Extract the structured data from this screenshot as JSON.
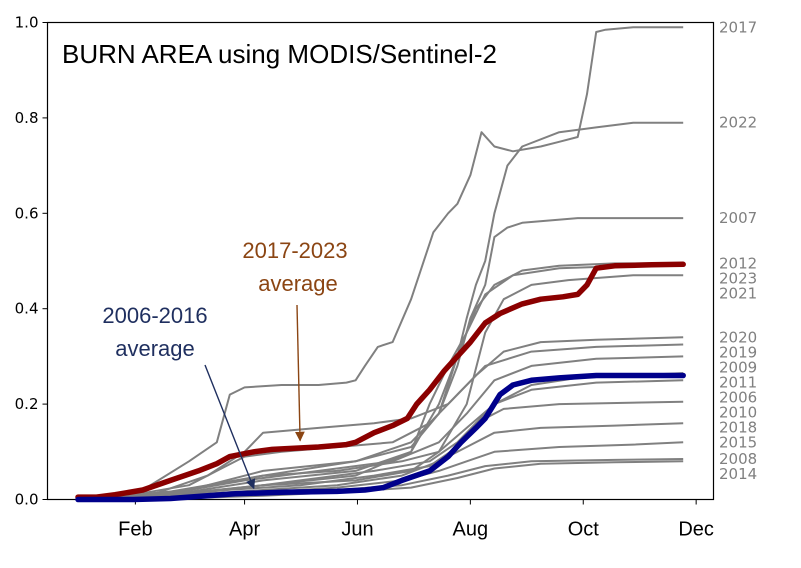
{
  "chart_data": {
    "type": "line",
    "title": "BURN AREA using MODIS/Sentinel-2",
    "xlabel": "",
    "ylabel": "",
    "xlim": [
      0,
      335
    ],
    "ylim": [
      0,
      1.0
    ],
    "yticks": [
      "0.0",
      "0.2",
      "0.4",
      "0.6",
      "0.8",
      "1.0"
    ],
    "xticks": [
      {
        "label": "Feb",
        "x": 31
      },
      {
        "label": "Apr",
        "x": 90
      },
      {
        "label": "Jun",
        "x": 151
      },
      {
        "label": "Aug",
        "x": 212
      },
      {
        "label": "Oct",
        "x": 273
      },
      {
        "label": "Dec",
        "x": 334
      }
    ],
    "grid": false,
    "legend": "none",
    "colors": {
      "years": "#808080",
      "recent_average": "#8b0000",
      "past_average": "#00008b",
      "recent_annotation": "#8b4513",
      "past_annotation": "#1f2f5f"
    },
    "series": [
      {
        "name": "2017",
        "end_value": 0.99,
        "points": [
          [
            0,
            0
          ],
          [
            20,
            0
          ],
          [
            35,
            0.02
          ],
          [
            60,
            0.08
          ],
          [
            75,
            0.12
          ],
          [
            82,
            0.22
          ],
          [
            90,
            0.235
          ],
          [
            110,
            0.24
          ],
          [
            130,
            0.24
          ],
          [
            145,
            0.245
          ],
          [
            150,
            0.25
          ],
          [
            155,
            0.28
          ],
          [
            162,
            0.32
          ],
          [
            170,
            0.33
          ],
          [
            180,
            0.42
          ],
          [
            192,
            0.56
          ],
          [
            200,
            0.6
          ],
          [
            205,
            0.62
          ],
          [
            212,
            0.68
          ],
          [
            218,
            0.77
          ],
          [
            225,
            0.74
          ],
          [
            235,
            0.73
          ],
          [
            250,
            0.74
          ],
          [
            260,
            0.75
          ],
          [
            270,
            0.76
          ],
          [
            275,
            0.85
          ],
          [
            280,
            0.98
          ],
          [
            285,
            0.985
          ],
          [
            300,
            0.99
          ],
          [
            327,
            0.99
          ]
        ]
      },
      {
        "name": "2022",
        "end_value": 0.79,
        "points": [
          [
            0,
            0
          ],
          [
            30,
            0
          ],
          [
            60,
            0.02
          ],
          [
            100,
            0.06
          ],
          [
            150,
            0.08
          ],
          [
            180,
            0.12
          ],
          [
            195,
            0.18
          ],
          [
            205,
            0.3
          ],
          [
            210,
            0.38
          ],
          [
            215,
            0.45
          ],
          [
            220,
            0.5
          ],
          [
            225,
            0.6
          ],
          [
            232,
            0.7
          ],
          [
            240,
            0.74
          ],
          [
            260,
            0.77
          ],
          [
            280,
            0.78
          ],
          [
            300,
            0.79
          ],
          [
            327,
            0.79
          ]
        ]
      },
      {
        "name": "2007",
        "end_value": 0.59,
        "points": [
          [
            0,
            0
          ],
          [
            30,
            0
          ],
          [
            60,
            0.02
          ],
          [
            100,
            0.05
          ],
          [
            150,
            0.08
          ],
          [
            180,
            0.11
          ],
          [
            195,
            0.18
          ],
          [
            205,
            0.28
          ],
          [
            212,
            0.38
          ],
          [
            220,
            0.45
          ],
          [
            225,
            0.55
          ],
          [
            232,
            0.57
          ],
          [
            240,
            0.58
          ],
          [
            270,
            0.59
          ],
          [
            327,
            0.59
          ]
        ]
      },
      {
        "name": "2012",
        "end_value": 0.495,
        "points": [
          [
            0,
            0
          ],
          [
            50,
            0.01
          ],
          [
            100,
            0.04
          ],
          [
            150,
            0.06
          ],
          [
            180,
            0.1
          ],
          [
            195,
            0.2
          ],
          [
            205,
            0.3
          ],
          [
            215,
            0.4
          ],
          [
            225,
            0.45
          ],
          [
            240,
            0.48
          ],
          [
            260,
            0.49
          ],
          [
            290,
            0.495
          ],
          [
            327,
            0.495
          ]
        ]
      },
      {
        "name": "2023",
        "end_value": 0.49,
        "points": [
          [
            0,
            0
          ],
          [
            50,
            0.01
          ],
          [
            100,
            0.03
          ],
          [
            150,
            0.05
          ],
          [
            180,
            0.1
          ],
          [
            190,
            0.2
          ],
          [
            200,
            0.28
          ],
          [
            210,
            0.35
          ],
          [
            220,
            0.43
          ],
          [
            235,
            0.47
          ],
          [
            260,
            0.485
          ],
          [
            300,
            0.49
          ],
          [
            327,
            0.49
          ]
        ]
      },
      {
        "name": "2021",
        "end_value": 0.47,
        "points": [
          [
            0,
            0
          ],
          [
            50,
            0.01
          ],
          [
            100,
            0.03
          ],
          [
            150,
            0.04
          ],
          [
            180,
            0.06
          ],
          [
            195,
            0.1
          ],
          [
            210,
            0.2
          ],
          [
            220,
            0.35
          ],
          [
            230,
            0.42
          ],
          [
            245,
            0.45
          ],
          [
            265,
            0.46
          ],
          [
            300,
            0.47
          ],
          [
            327,
            0.47
          ]
        ]
      },
      {
        "name": "2020",
        "end_value": 0.34,
        "points": [
          [
            0,
            0
          ],
          [
            40,
            0.01
          ],
          [
            70,
            0.05
          ],
          [
            90,
            0.1
          ],
          [
            100,
            0.14
          ],
          [
            130,
            0.15
          ],
          [
            160,
            0.16
          ],
          [
            180,
            0.17
          ],
          [
            200,
            0.2
          ],
          [
            215,
            0.26
          ],
          [
            230,
            0.31
          ],
          [
            250,
            0.33
          ],
          [
            280,
            0.335
          ],
          [
            327,
            0.34
          ]
        ]
      },
      {
        "name": "2019",
        "end_value": 0.325,
        "points": [
          [
            0,
            0
          ],
          [
            30,
            0.01
          ],
          [
            60,
            0.03
          ],
          [
            75,
            0.06
          ],
          [
            90,
            0.09
          ],
          [
            110,
            0.1
          ],
          [
            140,
            0.11
          ],
          [
            170,
            0.12
          ],
          [
            190,
            0.16
          ],
          [
            205,
            0.22
          ],
          [
            220,
            0.28
          ],
          [
            245,
            0.31
          ],
          [
            280,
            0.32
          ],
          [
            327,
            0.325
          ]
        ]
      },
      {
        "name": "2009",
        "end_value": 0.3,
        "points": [
          [
            0,
            0
          ],
          [
            30,
            0.01
          ],
          [
            60,
            0.02
          ],
          [
            90,
            0.04
          ],
          [
            130,
            0.06
          ],
          [
            170,
            0.08
          ],
          [
            195,
            0.12
          ],
          [
            210,
            0.18
          ],
          [
            225,
            0.25
          ],
          [
            245,
            0.28
          ],
          [
            280,
            0.295
          ],
          [
            327,
            0.3
          ]
        ]
      },
      {
        "name": "2011",
        "end_value": 0.265,
        "points": [
          [
            0,
            0
          ],
          [
            40,
            0.01
          ],
          [
            70,
            0.03
          ],
          [
            100,
            0.05
          ],
          [
            140,
            0.06
          ],
          [
            175,
            0.08
          ],
          [
            195,
            0.1
          ],
          [
            210,
            0.15
          ],
          [
            225,
            0.2
          ],
          [
            245,
            0.24
          ],
          [
            270,
            0.255
          ],
          [
            327,
            0.265
          ]
        ]
      },
      {
        "name": "2006",
        "end_value": 0.25,
        "points": [
          [
            0,
            0
          ],
          [
            40,
            0.005
          ],
          [
            80,
            0.02
          ],
          [
            120,
            0.03
          ],
          [
            160,
            0.05
          ],
          [
            190,
            0.07
          ],
          [
            205,
            0.11
          ],
          [
            215,
            0.16
          ],
          [
            225,
            0.2
          ],
          [
            245,
            0.23
          ],
          [
            280,
            0.245
          ],
          [
            327,
            0.25
          ]
        ]
      },
      {
        "name": "2010",
        "end_value": 0.205,
        "points": [
          [
            0,
            0
          ],
          [
            40,
            0.01
          ],
          [
            80,
            0.02
          ],
          [
            120,
            0.04
          ],
          [
            160,
            0.06
          ],
          [
            190,
            0.08
          ],
          [
            205,
            0.12
          ],
          [
            215,
            0.16
          ],
          [
            230,
            0.19
          ],
          [
            260,
            0.2
          ],
          [
            327,
            0.205
          ]
        ]
      },
      {
        "name": "2018",
        "end_value": 0.16,
        "points": [
          [
            0,
            0
          ],
          [
            60,
            0.01
          ],
          [
            100,
            0.02
          ],
          [
            140,
            0.03
          ],
          [
            175,
            0.05
          ],
          [
            195,
            0.08
          ],
          [
            210,
            0.11
          ],
          [
            225,
            0.14
          ],
          [
            250,
            0.15
          ],
          [
            290,
            0.155
          ],
          [
            327,
            0.16
          ]
        ]
      },
      {
        "name": "2015",
        "end_value": 0.12,
        "points": [
          [
            0,
            0
          ],
          [
            60,
            0.005
          ],
          [
            100,
            0.015
          ],
          [
            140,
            0.025
          ],
          [
            175,
            0.04
          ],
          [
            195,
            0.06
          ],
          [
            210,
            0.08
          ],
          [
            225,
            0.1
          ],
          [
            260,
            0.11
          ],
          [
            300,
            0.115
          ],
          [
            327,
            0.12
          ]
        ]
      },
      {
        "name": "2008",
        "end_value": 0.085,
        "points": [
          [
            0,
            0
          ],
          [
            60,
            0.005
          ],
          [
            100,
            0.01
          ],
          [
            140,
            0.02
          ],
          [
            175,
            0.03
          ],
          [
            200,
            0.05
          ],
          [
            220,
            0.07
          ],
          [
            245,
            0.08
          ],
          [
            290,
            0.083
          ],
          [
            327,
            0.085
          ]
        ]
      },
      {
        "name": "2014",
        "end_value": 0.08,
        "points": [
          [
            0,
            0
          ],
          [
            60,
            0.003
          ],
          [
            100,
            0.008
          ],
          [
            140,
            0.015
          ],
          [
            180,
            0.025
          ],
          [
            205,
            0.045
          ],
          [
            225,
            0.065
          ],
          [
            250,
            0.075
          ],
          [
            290,
            0.078
          ],
          [
            327,
            0.08
          ]
        ]
      },
      {
        "name": "2017-2023 average",
        "points": [
          [
            0,
            0.005
          ],
          [
            10,
            0.005
          ],
          [
            20,
            0.01
          ],
          [
            35,
            0.02
          ],
          [
            50,
            0.04
          ],
          [
            65,
            0.06
          ],
          [
            75,
            0.075
          ],
          [
            82,
            0.09
          ],
          [
            95,
            0.1
          ],
          [
            105,
            0.105
          ],
          [
            130,
            0.11
          ],
          [
            145,
            0.115
          ],
          [
            150,
            0.12
          ],
          [
            160,
            0.14
          ],
          [
            170,
            0.155
          ],
          [
            178,
            0.17
          ],
          [
            183,
            0.2
          ],
          [
            190,
            0.23
          ],
          [
            198,
            0.27
          ],
          [
            205,
            0.3
          ],
          [
            212,
            0.33
          ],
          [
            220,
            0.37
          ],
          [
            228,
            0.39
          ],
          [
            240,
            0.41
          ],
          [
            250,
            0.42
          ],
          [
            262,
            0.425
          ],
          [
            270,
            0.43
          ],
          [
            275,
            0.45
          ],
          [
            280,
            0.485
          ],
          [
            290,
            0.49
          ],
          [
            310,
            0.492
          ],
          [
            327,
            0.493
          ]
        ]
      },
      {
        "name": "2006-2016 average",
        "points": [
          [
            0,
            0
          ],
          [
            30,
            0
          ],
          [
            50,
            0.002
          ],
          [
            70,
            0.008
          ],
          [
            85,
            0.012
          ],
          [
            110,
            0.015
          ],
          [
            140,
            0.017
          ],
          [
            155,
            0.02
          ],
          [
            165,
            0.025
          ],
          [
            175,
            0.04
          ],
          [
            190,
            0.06
          ],
          [
            200,
            0.09
          ],
          [
            207,
            0.12
          ],
          [
            215,
            0.15
          ],
          [
            220,
            0.17
          ],
          [
            228,
            0.22
          ],
          [
            235,
            0.24
          ],
          [
            245,
            0.25
          ],
          [
            260,
            0.255
          ],
          [
            280,
            0.26
          ],
          [
            300,
            0.26
          ],
          [
            327,
            0.26
          ]
        ]
      }
    ],
    "annotations": [
      {
        "text_lines": [
          "2017-2023",
          "average"
        ],
        "target": [
          120,
          0.115
        ],
        "series": "2017-2023 average"
      },
      {
        "text_lines": [
          "2006-2016",
          "average"
        ],
        "target": [
          95,
          0.015
        ],
        "series": "2006-2016 average"
      }
    ]
  }
}
